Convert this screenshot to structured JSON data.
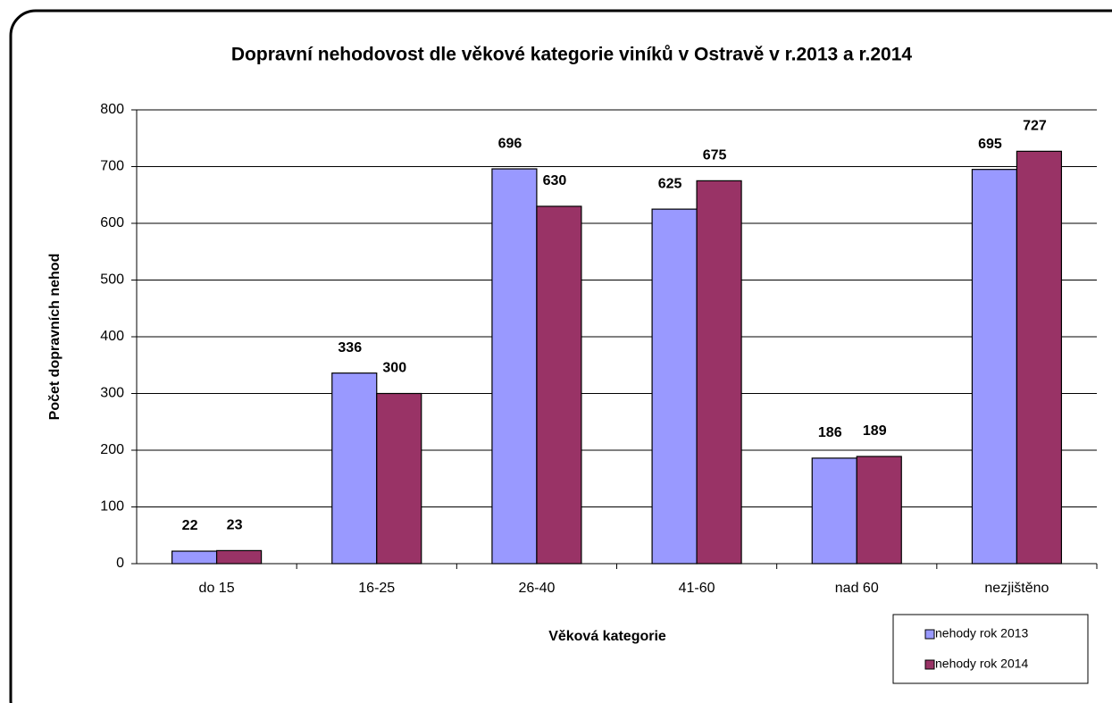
{
  "chart_data": {
    "type": "bar",
    "title": "Dopravní nehodovost dle věkové kategorie viníků v Ostravě v r.2013 a r.2014",
    "x_label": "Věková kategorie",
    "y_label": "Počet dopravních nehod",
    "categories": [
      "do 15",
      "16-25",
      "26-40",
      "41-60",
      "nad 60",
      "nezjištěno"
    ],
    "series": [
      {
        "name": "nehody rok 2013",
        "color": "#9999ff",
        "values": [
          22,
          336,
          696,
          625,
          186,
          695
        ]
      },
      {
        "name": "nehody rok 2014",
        "color": "#993366",
        "values": [
          23,
          300,
          630,
          675,
          189,
          727
        ]
      }
    ],
    "ylim": [
      0,
      800
    ],
    "yticks": [
      0,
      100,
      200,
      300,
      400,
      500,
      600,
      700,
      800
    ],
    "grid": true,
    "legend": "bottom-right"
  }
}
